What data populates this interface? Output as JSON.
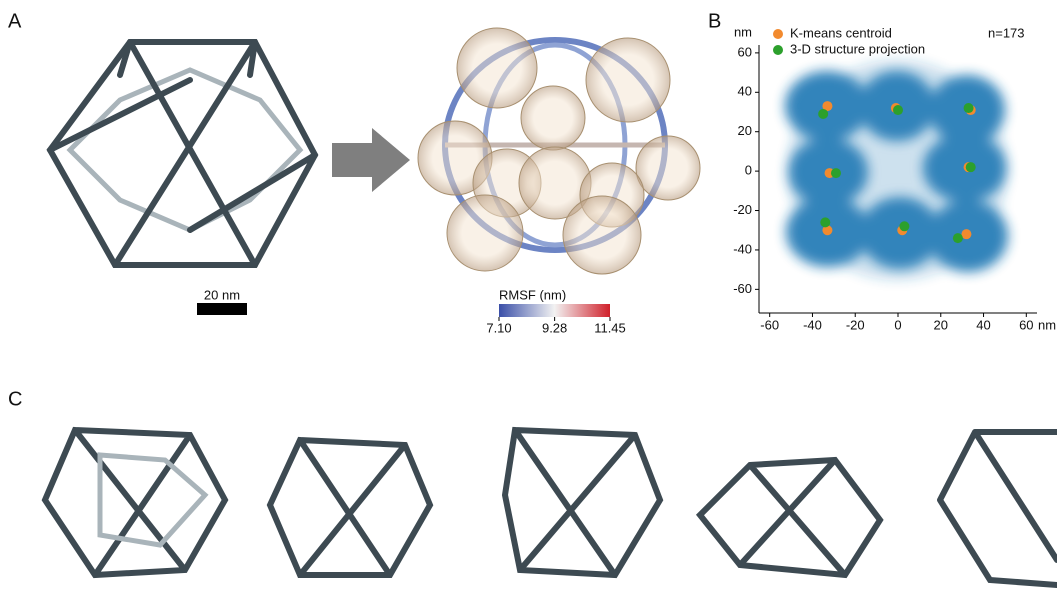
{
  "panels": {
    "a": "A",
    "b": "B",
    "c": "C"
  },
  "scale_bar": "20 nm",
  "colorbar": {
    "title": "RMSF (nm)",
    "ticks": [
      {
        "value": 7.1,
        "label": "7.10"
      },
      9.28,
      11.45
    ],
    "lim": [
      7.1,
      11.45
    ]
  },
  "chart_data": {
    "type": "scatter",
    "annotation": "n=173",
    "x_unit": "nm",
    "y_unit": "nm",
    "xlim": [
      -65,
      65
    ],
    "ylim": [
      -72,
      64
    ],
    "xticks": [
      -60,
      -40,
      -20,
      0,
      20,
      40,
      60
    ],
    "yticks": [
      -60,
      -40,
      -20,
      0,
      20,
      40,
      60
    ],
    "series": [
      {
        "name": "K-means centroid",
        "color": "#f28a2e",
        "x": [
          -33,
          -1,
          34,
          -32,
          33,
          -33,
          2,
          32
        ],
        "values": [
          33,
          32,
          31,
          -1,
          2,
          -30,
          -30,
          -32
        ]
      },
      {
        "name": "3-D structure projection",
        "color": "#2ca02c",
        "x": [
          -35,
          0,
          33,
          -29,
          34,
          -34,
          3,
          28
        ],
        "values": [
          29,
          31,
          32,
          -1,
          2,
          -26,
          -28,
          -34
        ]
      }
    ]
  }
}
